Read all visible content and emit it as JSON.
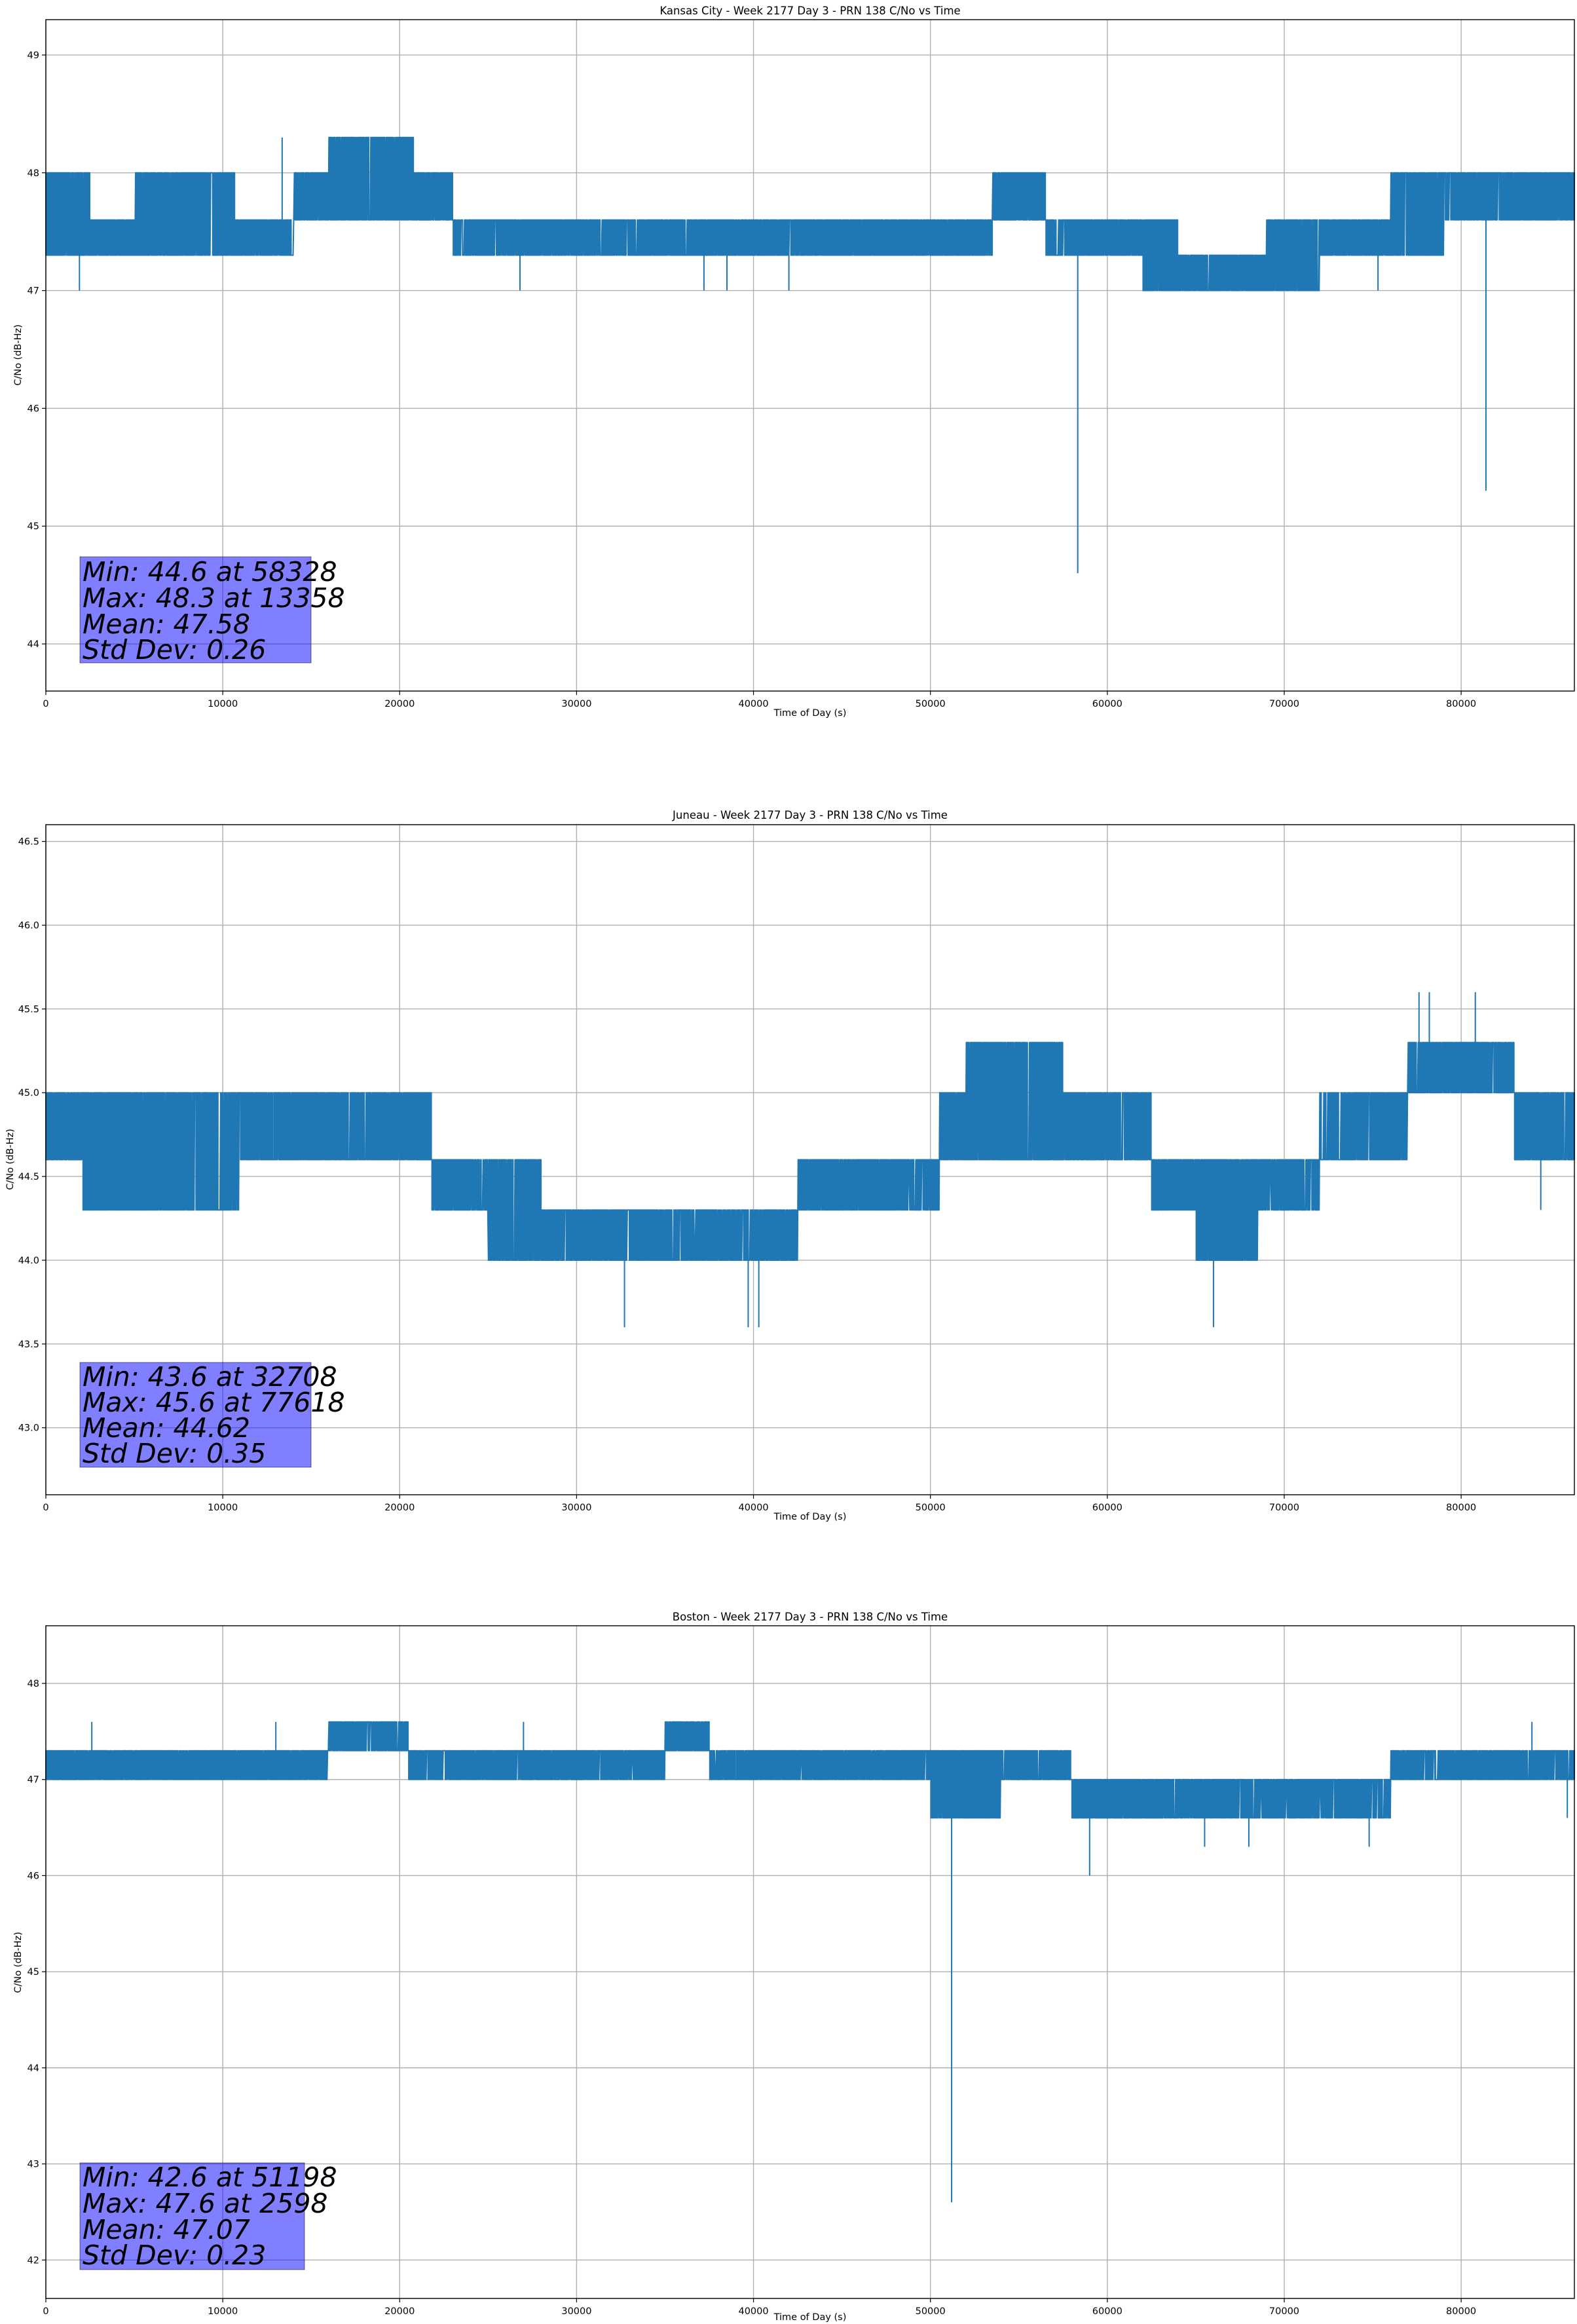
{
  "chart_data": [
    {
      "type": "line",
      "title": "Kansas City - Week 2177 Day 3 - PRN 138 C/No vs Time",
      "xlabel": "Time of Day (s)",
      "ylabel": "C/No (dB-Hz)",
      "xlim": [
        0,
        86400
      ],
      "ylim": [
        43.6,
        49.3
      ],
      "xticks": [
        0,
        10000,
        20000,
        30000,
        40000,
        50000,
        60000,
        70000,
        80000
      ],
      "yticks": [
        44,
        45,
        46,
        47,
        48,
        49
      ],
      "grid": true,
      "series": [
        {
          "color": "#1f77b4",
          "band_x": [
            0,
            2500,
            5000,
            7000,
            10700,
            14000,
            16000,
            20800,
            23000,
            26000,
            30000,
            35000,
            40000,
            45000,
            48000,
            50500,
            53500,
            56500,
            59000,
            62000,
            64000,
            66500,
            69000,
            72000,
            76000,
            79000,
            82000,
            86400
          ],
          "band_low": [
            47.3,
            47.3,
            47.3,
            47.3,
            47.3,
            47.6,
            47.6,
            47.6,
            47.3,
            47.3,
            47.3,
            47.3,
            47.3,
            47.3,
            47.3,
            47.3,
            47.6,
            47.3,
            47.3,
            47.0,
            47.0,
            47.0,
            47.0,
            47.3,
            47.3,
            47.6,
            47.6,
            47.6
          ],
          "band_high": [
            48.0,
            47.6,
            48.0,
            48.0,
            47.6,
            48.0,
            48.3,
            48.0,
            47.6,
            47.6,
            47.6,
            47.6,
            47.6,
            47.6,
            47.6,
            47.6,
            48.0,
            47.6,
            47.6,
            47.6,
            47.3,
            47.3,
            47.6,
            47.6,
            48.0,
            48.0,
            48.0,
            48.0
          ],
          "spikes": [
            [
              1900,
              47.0
            ],
            [
              13358,
              48.3
            ],
            [
              26800,
              47.0
            ],
            [
              37200,
              47.0
            ],
            [
              38500,
              47.0
            ],
            [
              42000,
              47.0
            ],
            [
              58328,
              44.6
            ],
            [
              81400,
              45.3
            ],
            [
              68500,
              47.0
            ],
            [
              75300,
              47.0
            ]
          ]
        }
      ],
      "stats": {
        "min_line": "Min: 44.6 at 58328",
        "max_line": "Max: 48.3 at 13358",
        "mean_line": "Mean: 47.58",
        "std_line": "Std Dev: 0.26"
      }
    },
    {
      "type": "line",
      "title": "Juneau - Week 2177 Day 3 - PRN 138 C/No vs Time",
      "xlabel": "Time of Day (s)",
      "ylabel": "C/No (dB-Hz)",
      "xlim": [
        0,
        86400
      ],
      "ylim": [
        42.6,
        46.6
      ],
      "xticks": [
        0,
        10000,
        20000,
        30000,
        40000,
        50000,
        60000,
        70000,
        80000
      ],
      "yticks": [
        43.0,
        43.5,
        44.0,
        44.5,
        45.0,
        45.5,
        46.0,
        46.5
      ],
      "grid": true,
      "series": [
        {
          "color": "#1f77b4",
          "band_x": [
            0,
            2100,
            5000,
            7500,
            11000,
            13500,
            16500,
            20000,
            21800,
            25000,
            28000,
            33000,
            36500,
            41000,
            42500,
            47000,
            50500,
            52000,
            55000,
            57500,
            62500,
            65000,
            68500,
            72000,
            75000,
            77000,
            81000,
            83000,
            86400
          ],
          "band_low": [
            44.6,
            44.3,
            44.3,
            44.3,
            44.6,
            44.6,
            44.6,
            44.6,
            44.3,
            44.0,
            44.0,
            44.0,
            44.0,
            44.0,
            44.3,
            44.3,
            44.6,
            44.6,
            44.6,
            44.6,
            44.3,
            44.0,
            44.3,
            44.6,
            44.6,
            45.0,
            45.0,
            44.6,
            44.6
          ],
          "band_high": [
            45.0,
            45.0,
            45.0,
            45.0,
            45.0,
            45.0,
            45.0,
            45.0,
            44.6,
            44.6,
            44.3,
            44.3,
            44.3,
            44.3,
            44.6,
            44.6,
            45.0,
            45.3,
            45.3,
            45.0,
            44.6,
            44.6,
            44.6,
            45.0,
            45.0,
            45.3,
            45.3,
            45.0,
            45.0
          ],
          "spikes": [
            [
              32708,
              43.6
            ],
            [
              39700,
              43.6
            ],
            [
              40300,
              43.6
            ],
            [
              66000,
              43.6
            ],
            [
              77618,
              45.6
            ],
            [
              78200,
              45.6
            ],
            [
              80800,
              45.6
            ],
            [
              84500,
              44.3
            ]
          ]
        }
      ],
      "stats": {
        "min_line": "Min: 43.6 at 32708",
        "max_line": "Max: 45.6 at 77618",
        "mean_line": "Mean: 44.62",
        "std_line": "Std Dev: 0.35"
      }
    },
    {
      "type": "line",
      "title": "Boston - Week 2177 Day 3 - PRN 138 C/No vs Time",
      "xlabel": "Time of Day (s)",
      "ylabel": "C/No (dB-Hz)",
      "xlim": [
        0,
        86400
      ],
      "ylim": [
        41.6,
        48.6
      ],
      "xticks": [
        0,
        10000,
        20000,
        30000,
        40000,
        50000,
        60000,
        70000,
        80000
      ],
      "yticks": [
        42,
        43,
        44,
        45,
        46,
        47,
        48
      ],
      "grid": true,
      "series": [
        {
          "color": "#1f77b4",
          "band_x": [
            0,
            2600,
            6000,
            10000,
            14000,
            16000,
            20500,
            23000,
            26500,
            30000,
            33500,
            35000,
            37500,
            42000,
            46000,
            50000,
            54000,
            58000,
            62000,
            66000,
            70000,
            74000,
            76000,
            80000,
            86400
          ],
          "band_low": [
            47.0,
            47.0,
            47.0,
            47.0,
            47.0,
            47.3,
            47.0,
            47.0,
            47.0,
            47.0,
            47.0,
            47.3,
            47.0,
            47.0,
            47.0,
            46.6,
            47.0,
            46.6,
            46.6,
            46.6,
            46.6,
            46.6,
            47.0,
            47.0,
            47.0
          ],
          "band_high": [
            47.3,
            47.3,
            47.3,
            47.3,
            47.3,
            47.6,
            47.3,
            47.3,
            47.3,
            47.3,
            47.3,
            47.6,
            47.3,
            47.3,
            47.3,
            47.3,
            47.3,
            47.0,
            47.0,
            47.0,
            47.0,
            47.0,
            47.3,
            47.3,
            47.3
          ],
          "spikes": [
            [
              51198,
              42.6
            ],
            [
              2598,
              47.6
            ],
            [
              59000,
              46.0
            ],
            [
              68000,
              46.3
            ],
            [
              65500,
              46.3
            ],
            [
              74800,
              46.3
            ],
            [
              84000,
              47.6
            ],
            [
              86000,
              46.6
            ],
            [
              13000,
              47.6
            ],
            [
              27000,
              47.6
            ]
          ]
        }
      ],
      "stats": {
        "min_line": "Min: 42.6 at 51198",
        "max_line": "Max: 47.6 at 2598",
        "mean_line": "Mean: 47.07",
        "std_line": "Std Dev: 0.23"
      }
    }
  ]
}
